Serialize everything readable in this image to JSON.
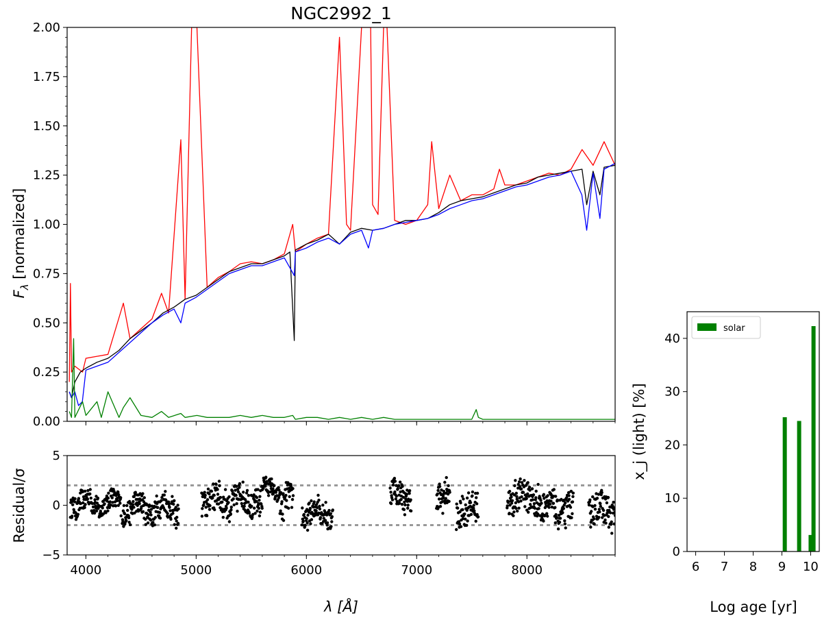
{
  "chart_data": [
    {
      "type": "line",
      "title": "NGC2992_1",
      "xlabel": "",
      "ylabel": "F_λ [normalized]",
      "xlim": [
        3830,
        8800
      ],
      "ylim": [
        0,
        2.0
      ],
      "x_ticks": [
        4000,
        5000,
        6000,
        7000,
        8000
      ],
      "y_ticks": [
        "0.00",
        "0.25",
        "0.50",
        "0.75",
        "1.00",
        "1.25",
        "1.50",
        "1.75",
        "2.00"
      ],
      "grid": false,
      "colors": {
        "observed": "#000000",
        "observed_emission": "#ff0000",
        "model": "#0000ff",
        "residual_emission": "#008000"
      },
      "series": [
        {
          "key": "observed_emission",
          "x": [
            3850,
            3860,
            3870,
            3900,
            3970,
            4000,
            4101,
            4200,
            4340,
            4400,
            4500,
            4600,
            4686,
            4750,
            4861,
            4900,
            4959,
            5007,
            5100,
            5200,
            5300,
            5400,
            5500,
            5600,
            5700,
            5800,
            5876,
            5900,
            6000,
            6100,
            6200,
            6300,
            6364,
            6400,
            6500,
            6548,
            6563,
            6583,
            6600,
            6650,
            6700,
            6716,
            6731,
            6800,
            6900,
            7000,
            7100,
            7136,
            7200,
            7300,
            7400,
            7500,
            7600,
            7700,
            7751,
            7800,
            7900,
            8000,
            8100,
            8200,
            8300,
            8400,
            8500,
            8600,
            8700,
            8800
          ],
          "y": [
            0.2,
            0.7,
            0.25,
            0.28,
            0.25,
            0.32,
            0.33,
            0.34,
            0.6,
            0.42,
            0.47,
            0.52,
            0.65,
            0.55,
            1.43,
            0.62,
            2.0,
            2.0,
            0.68,
            0.73,
            0.76,
            0.8,
            0.81,
            0.8,
            0.82,
            0.85,
            1.0,
            0.86,
            0.9,
            0.93,
            0.95,
            1.95,
            1.0,
            0.97,
            2.0,
            2.0,
            2.0,
            2.0,
            1.1,
            1.05,
            2.0,
            2.0,
            2.0,
            1.02,
            1.0,
            1.02,
            1.1,
            1.42,
            1.08,
            1.25,
            1.12,
            1.15,
            1.15,
            1.18,
            1.28,
            1.2,
            1.2,
            1.22,
            1.24,
            1.26,
            1.25,
            1.28,
            1.38,
            1.3,
            1.42,
            1.3
          ]
        },
        {
          "key": "observed",
          "x": [
            3850,
            3870,
            3900,
            3950,
            4000,
            4100,
            4200,
            4300,
            4400,
            4500,
            4600,
            4700,
            4800,
            4900,
            5000,
            5100,
            5200,
            5300,
            5400,
            5500,
            5600,
            5700,
            5800,
            5850,
            5890,
            5900,
            6000,
            6100,
            6200,
            6300,
            6400,
            6500,
            6600,
            6700,
            6800,
            6900,
            7000,
            7100,
            7200,
            7300,
            7400,
            7500,
            7600,
            7700,
            7800,
            7900,
            8000,
            8100,
            8200,
            8300,
            8400,
            8500,
            8542,
            8600,
            8662,
            8700,
            8800
          ],
          "y": [
            0.15,
            0.12,
            0.2,
            0.25,
            0.27,
            0.3,
            0.32,
            0.36,
            0.42,
            0.46,
            0.5,
            0.55,
            0.58,
            0.62,
            0.64,
            0.68,
            0.72,
            0.76,
            0.78,
            0.8,
            0.8,
            0.82,
            0.84,
            0.86,
            0.41,
            0.87,
            0.9,
            0.92,
            0.95,
            0.9,
            0.96,
            0.98,
            0.97,
            0.98,
            1.0,
            1.02,
            1.02,
            1.03,
            1.06,
            1.1,
            1.12,
            1.13,
            1.14,
            1.16,
            1.18,
            1.2,
            1.21,
            1.24,
            1.25,
            1.26,
            1.27,
            1.28,
            1.1,
            1.27,
            1.15,
            1.29,
            1.3
          ]
        },
        {
          "key": "model",
          "x": [
            3850,
            3870,
            3900,
            3933,
            3968,
            4000,
            4100,
            4200,
            4300,
            4400,
            4500,
            4600,
            4700,
            4800,
            4861,
            4900,
            5000,
            5100,
            5200,
            5300,
            5400,
            5500,
            5600,
            5700,
            5800,
            5890,
            5900,
            6000,
            6100,
            6200,
            6300,
            6400,
            6500,
            6563,
            6600,
            6700,
            6800,
            6900,
            7000,
            7100,
            7200,
            7300,
            7400,
            7500,
            7600,
            7700,
            7800,
            7900,
            8000,
            8100,
            8200,
            8300,
            8400,
            8498,
            8542,
            8600,
            8662,
            8700,
            8800
          ],
          "y": [
            0.15,
            0.12,
            0.15,
            0.08,
            0.1,
            0.26,
            0.28,
            0.3,
            0.35,
            0.4,
            0.45,
            0.5,
            0.54,
            0.57,
            0.5,
            0.6,
            0.63,
            0.67,
            0.71,
            0.75,
            0.77,
            0.79,
            0.79,
            0.81,
            0.83,
            0.74,
            0.86,
            0.88,
            0.91,
            0.93,
            0.9,
            0.95,
            0.97,
            0.88,
            0.97,
            0.98,
            1.0,
            1.01,
            1.02,
            1.03,
            1.05,
            1.08,
            1.1,
            1.12,
            1.13,
            1.15,
            1.17,
            1.19,
            1.2,
            1.22,
            1.24,
            1.25,
            1.27,
            1.15,
            0.97,
            1.26,
            1.03,
            1.28,
            1.31
          ]
        },
        {
          "key": "residual_emission",
          "x": [
            3850,
            3870,
            3889,
            3900,
            3970,
            4000,
            4101,
            4140,
            4200,
            4300,
            4340,
            4400,
            4500,
            4600,
            4686,
            4750,
            4861,
            4900,
            5007,
            5100,
            5200,
            5300,
            5400,
            5500,
            5600,
            5700,
            5800,
            5876,
            5900,
            6000,
            6100,
            6200,
            6300,
            6400,
            6500,
            6600,
            6700,
            6800,
            6900,
            7000,
            7100,
            7200,
            7300,
            7400,
            7500,
            7540,
            7560,
            7600,
            7700,
            7800,
            7900,
            8000,
            8200,
            8400,
            8600,
            8800
          ],
          "y": [
            0.05,
            0.02,
            0.42,
            0.02,
            0.1,
            0.03,
            0.1,
            0.02,
            0.15,
            0.02,
            0.07,
            0.12,
            0.03,
            0.02,
            0.05,
            0.02,
            0.04,
            0.02,
            0.03,
            0.02,
            0.02,
            0.02,
            0.03,
            0.02,
            0.03,
            0.02,
            0.02,
            0.03,
            0.01,
            0.02,
            0.02,
            0.01,
            0.02,
            0.01,
            0.02,
            0.01,
            0.02,
            0.01,
            0.01,
            0.01,
            0.01,
            0.01,
            0.01,
            0.01,
            0.01,
            0.06,
            0.02,
            0.01,
            0.01,
            0.01,
            0.01,
            0.01,
            0.01,
            0.01,
            0.01,
            0.01
          ]
        }
      ]
    },
    {
      "type": "scatter",
      "xlabel": "λ [Å]",
      "ylabel": "Residual/σ",
      "xlim": [
        3830,
        8800
      ],
      "ylim": [
        -5,
        5
      ],
      "x_ticks": [
        "4000",
        "5000",
        "6000",
        "7000",
        "8000"
      ],
      "y_ticks": [
        "−5",
        "0",
        "5"
      ],
      "reference_lines": [
        2,
        -2
      ],
      "grid": false,
      "segments": [
        {
          "x_range": [
            3860,
            4320
          ],
          "center": 0.2,
          "spread": 1.0
        },
        {
          "x_range": [
            4330,
            4840
          ],
          "center": -0.3,
          "spread": 1.2
        },
        {
          "x_range": [
            5050,
            5600
          ],
          "center": 0.5,
          "spread": 1.4
        },
        {
          "x_range": [
            5600,
            5760
          ],
          "center": 1.5,
          "spread": 0.8
        },
        {
          "x_range": [
            5760,
            5880
          ],
          "center": 0.5,
          "spread": 1.5
        },
        {
          "x_range": [
            5960,
            6240
          ],
          "center": -0.8,
          "spread": 1.2
        },
        {
          "x_range": [
            6760,
            6950
          ],
          "center": 1.0,
          "spread": 1.2
        },
        {
          "x_range": [
            7180,
            7300
          ],
          "center": 0.5,
          "spread": 1.5
        },
        {
          "x_range": [
            7360,
            7560
          ],
          "center": -0.5,
          "spread": 1.5
        },
        {
          "x_range": [
            7820,
            8120
          ],
          "center": 0.8,
          "spread": 1.6
        },
        {
          "x_range": [
            8120,
            8420
          ],
          "center": -0.3,
          "spread": 1.5
        },
        {
          "x_range": [
            8560,
            8800
          ],
          "center": -0.5,
          "spread": 1.6
        }
      ]
    },
    {
      "type": "bar",
      "xlabel": "Log age [yr]",
      "ylabel": "x_j (light) [%]",
      "xlim": [
        5.7,
        10.3
      ],
      "ylim": [
        0,
        45
      ],
      "x_ticks": [
        "6",
        "7",
        "8",
        "9",
        "10"
      ],
      "y_ticks": [
        "0",
        "10",
        "20",
        "30",
        "40"
      ],
      "legend": "top-left",
      "grid": false,
      "series": [
        {
          "name": "solar",
          "color": "#008000",
          "x": [
            9.1,
            9.6,
            10.0,
            10.1
          ],
          "values": [
            25.2,
            24.5,
            3.1,
            42.3
          ]
        }
      ]
    }
  ]
}
